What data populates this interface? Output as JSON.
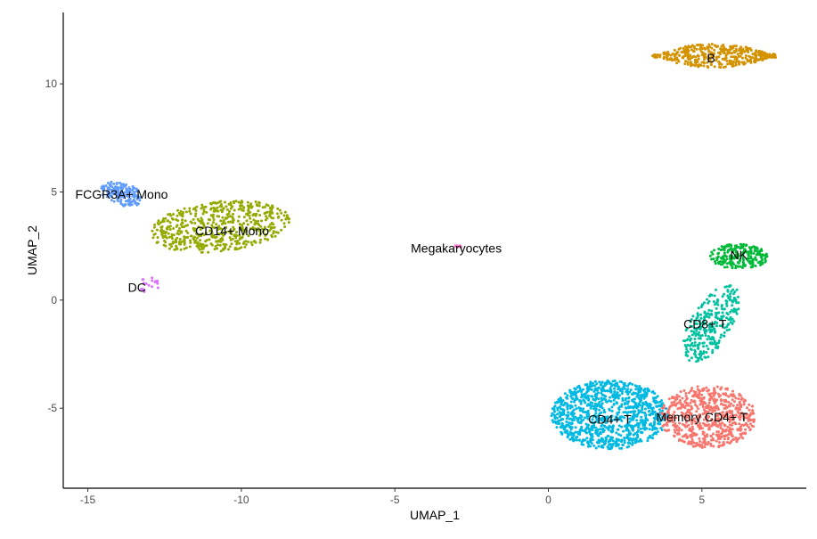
{
  "chart_data": {
    "type": "scatter",
    "title": "",
    "xlabel": "UMAP_1",
    "ylabel": "UMAP_2",
    "xlim": [
      -15.8,
      8.4
    ],
    "ylim": [
      -8.7,
      13.3
    ],
    "xticks": [
      -15,
      -10,
      -5,
      0,
      5
    ],
    "yticks": [
      -5,
      0,
      5,
      10
    ],
    "grid": false,
    "legend": "none",
    "series": [
      {
        "name": "B",
        "color": "#D39200",
        "n": 420,
        "shape": "lens",
        "cx": 5.4,
        "cy": 11.3,
        "rx": 2.0,
        "ry": 0.55,
        "label_x": 5.3,
        "label_y": 11.2
      },
      {
        "name": "FCGR3A+ Mono",
        "color": "#619CFF",
        "n": 150,
        "shape": "ellipse",
        "cx": -13.9,
        "cy": 4.9,
        "rx": 0.75,
        "ry": 0.5,
        "tilt": -30,
        "label_x": -13.9,
        "label_y": 4.9
      },
      {
        "name": "CD14+ Mono",
        "color": "#93AA00",
        "n": 560,
        "shape": "ellipse",
        "cx": -10.7,
        "cy": 3.4,
        "rx": 2.3,
        "ry": 1.15,
        "tilt": 10,
        "label_x": -10.3,
        "label_y": 3.2
      },
      {
        "name": "DC",
        "color": "#DB72FB",
        "n": 18,
        "shape": "ellipse",
        "cx": -13.0,
        "cy": 0.7,
        "rx": 0.35,
        "ry": 0.35,
        "label_x": -13.4,
        "label_y": 0.6
      },
      {
        "name": "Megakaryocytes",
        "color": "#FF61C3",
        "n": 6,
        "shape": "ellipse",
        "cx": -2.95,
        "cy": 2.45,
        "rx": 0.12,
        "ry": 0.08,
        "label_x": -3.0,
        "label_y": 2.4
      },
      {
        "name": "NK",
        "color": "#00BA38",
        "n": 220,
        "shape": "ellipse",
        "cx": 6.2,
        "cy": 2.0,
        "rx": 0.95,
        "ry": 0.6,
        "label_x": 6.2,
        "label_y": 2.1
      },
      {
        "name": "CD8+ T",
        "color": "#00C19F",
        "n": 300,
        "shape": "ellipse",
        "cx": 5.3,
        "cy": -1.1,
        "rx": 0.7,
        "ry": 1.9,
        "tilt": -20,
        "label_x": 5.1,
        "label_y": -1.1
      },
      {
        "name": "CD4+ T",
        "color": "#00B9E3",
        "n": 1000,
        "shape": "ellipse",
        "cx": 2.0,
        "cy": -5.3,
        "rx": 1.9,
        "ry": 1.6,
        "label_x": 2.0,
        "label_y": -5.5
      },
      {
        "name": "Memory CD4+ T",
        "color": "#F8766D",
        "n": 650,
        "shape": "ellipse",
        "cx": 5.2,
        "cy": -5.4,
        "rx": 1.55,
        "ry": 1.45,
        "label_x": 5.0,
        "label_y": -5.4
      }
    ]
  }
}
